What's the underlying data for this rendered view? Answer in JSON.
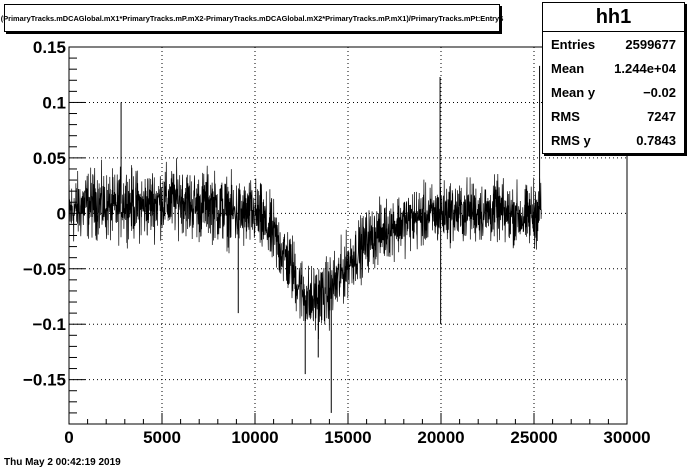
{
  "title": "(PrimaryTracks.mDCAGlobal.mX1*PrimaryTracks.mP.mX2-PrimaryTracks.mDCAGlobal.mX2*PrimaryTracks.mP.mX1)/PrimaryTracks.mPt:Entry$",
  "stats": {
    "name": "hh1",
    "rows": [
      {
        "label": "Entries",
        "value": "2599677"
      },
      {
        "label": "Mean",
        "value": "1.244e+04"
      },
      {
        "label": "Mean y",
        "value": "−0.02"
      },
      {
        "label": "RMS",
        "value": "7247"
      },
      {
        "label": "RMS y",
        "value": "0.7843"
      }
    ]
  },
  "datestamp": "Thu May  2 00:42:19 2019",
  "chart_data": {
    "type": "line",
    "title": "(PrimaryTracks.mDCAGlobal.mX1*PrimaryTracks.mP.mX2-PrimaryTracks.mDCAGlobal.mX2*PrimaryTracks.mP.mX1)/PrimaryTracks.mPt:Entry$",
    "xlim": [
      0,
      30000
    ],
    "ylim": [
      -0.19,
      0.15
    ],
    "x_ticks": [
      0,
      5000,
      10000,
      15000,
      20000,
      25000,
      30000
    ],
    "x_tick_labels": [
      "0",
      "5000",
      "10000",
      "15000",
      "20000",
      "25000",
      "30000"
    ],
    "y_ticks": [
      -0.15,
      -0.1,
      -0.05,
      0,
      0.05,
      0.1,
      0.15
    ],
    "y_tick_labels": [
      "−0.15",
      "−0.1",
      "−0.05",
      "0",
      "0.05",
      "0.1",
      "0.15"
    ],
    "grid": true,
    "line_color": "#000000",
    "series": [
      {
        "x": [
          0,
          500,
          1000,
          1500,
          2000,
          2500,
          3000,
          3500,
          4000,
          4500,
          5000,
          5500,
          6000,
          6500,
          7000,
          7500,
          8000,
          8500,
          9000,
          9500,
          10000,
          10500,
          11000,
          11500,
          12000,
          12500,
          13000,
          13500,
          14000,
          14500,
          15000,
          15500,
          16000,
          16500,
          17000,
          17500,
          18000,
          18500,
          19000,
          19500,
          20000,
          20500,
          21000,
          21500,
          22000,
          22500,
          23000,
          23500,
          24000,
          24500,
          25000,
          25400
        ],
        "y": [
          0.0,
          0.005,
          0.008,
          0.01,
          0.006,
          0.004,
          0.012,
          0.008,
          0.006,
          0.01,
          0.012,
          0.01,
          0.015,
          0.008,
          0.006,
          0.01,
          0.004,
          0.002,
          0.0,
          -0.002,
          0.0,
          -0.01,
          -0.02,
          -0.035,
          -0.05,
          -0.07,
          -0.08,
          -0.075,
          -0.07,
          -0.06,
          -0.045,
          -0.035,
          -0.025,
          -0.02,
          -0.015,
          -0.01,
          -0.008,
          -0.005,
          -0.003,
          -0.002,
          0.0,
          0.002,
          0.0,
          0.003,
          0.002,
          0.0,
          0.004,
          -0.002,
          0.0,
          -0.005,
          0.0,
          0.005
        ],
        "band": [
          0.045,
          0.045,
          0.045,
          0.045,
          0.045,
          0.045,
          0.045,
          0.045,
          0.045,
          0.045,
          0.045,
          0.045,
          0.045,
          0.045,
          0.045,
          0.045,
          0.045,
          0.045,
          0.045,
          0.045,
          0.045,
          0.045,
          0.045,
          0.045,
          0.045,
          0.045,
          0.045,
          0.045,
          0.045,
          0.045,
          0.04,
          0.04,
          0.04,
          0.04,
          0.04,
          0.04,
          0.04,
          0.04,
          0.04,
          0.04,
          0.04,
          0.04,
          0.04,
          0.04,
          0.04,
          0.04,
          0.04,
          0.04,
          0.04,
          0.04,
          0.045,
          0.045
        ],
        "spikes": [
          {
            "x": 12700,
            "y": -0.145
          },
          {
            "x": 14100,
            "y": -0.18
          },
          {
            "x": 13400,
            "y": -0.13
          },
          {
            "x": 19950,
            "y": 0.123
          },
          {
            "x": 19980,
            "y": -0.1
          },
          {
            "x": 25300,
            "y": 0.133
          },
          {
            "x": 2800,
            "y": 0.1
          },
          {
            "x": 9100,
            "y": -0.09
          }
        ]
      }
    ]
  }
}
